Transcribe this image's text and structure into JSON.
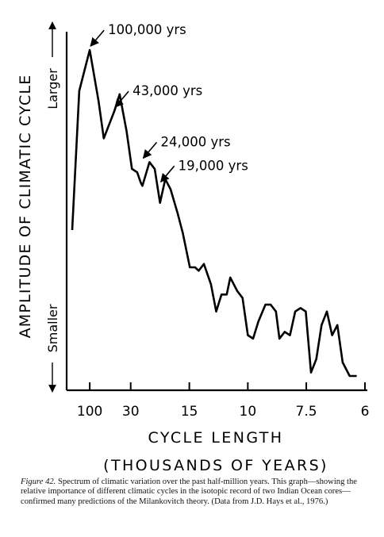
{
  "chart_data": {
    "type": "line",
    "title": "",
    "xlabel": "CYCLE LENGTH",
    "xlabel_units": "(THOUSANDS OF YEARS)",
    "ylabel": "AMPLITUDE OF CLIMATIC CYCLE",
    "y_top_label": "Larger",
    "y_bottom_label": "Smaller",
    "x_ticks": [
      {
        "label": "100",
        "frequency": 0.01
      },
      {
        "label": "30",
        "frequency": 0.0333
      },
      {
        "label": "15",
        "frequency": 0.0667
      },
      {
        "label": "10",
        "frequency": 0.1
      },
      {
        "label": "7.5",
        "frequency": 0.1333
      },
      {
        "label": "6",
        "frequency": 0.1667
      }
    ],
    "x_scale": "frequency (1 / cycle length)",
    "xlim": [
      0.0,
      0.1667
    ],
    "ylim": [
      0,
      100
    ],
    "y_axis_values_printed": false,
    "grid": false,
    "series": [
      {
        "values": [
          [
            0.0,
            43
          ],
          [
            0.004,
            84
          ],
          [
            0.01,
            96
          ],
          [
            0.015,
            81
          ],
          [
            0.018,
            70
          ],
          [
            0.024,
            78
          ],
          [
            0.027,
            83
          ],
          [
            0.031,
            72
          ],
          [
            0.034,
            61
          ],
          [
            0.037,
            60
          ],
          [
            0.039,
            57
          ],
          [
            0.04,
            56
          ],
          [
            0.044,
            63
          ],
          [
            0.047,
            61
          ],
          [
            0.05,
            51
          ],
          [
            0.053,
            58
          ],
          [
            0.056,
            55
          ],
          [
            0.06,
            48
          ],
          [
            0.063,
            42
          ],
          [
            0.067,
            32
          ],
          [
            0.07,
            32
          ],
          [
            0.072,
            31
          ],
          [
            0.075,
            33
          ],
          [
            0.079,
            27
          ],
          [
            0.082,
            19
          ],
          [
            0.085,
            24
          ],
          [
            0.088,
            24
          ],
          [
            0.09,
            29
          ],
          [
            0.094,
            25
          ],
          [
            0.097,
            23
          ],
          [
            0.1,
            12
          ],
          [
            0.103,
            11
          ],
          [
            0.106,
            16
          ],
          [
            0.11,
            21
          ],
          [
            0.113,
            21
          ],
          [
            0.116,
            19
          ],
          [
            0.118,
            11
          ],
          [
            0.121,
            13
          ],
          [
            0.124,
            12
          ],
          [
            0.127,
            19
          ],
          [
            0.13,
            20
          ],
          [
            0.133,
            19
          ],
          [
            0.136,
            1
          ],
          [
            0.139,
            5
          ],
          [
            0.142,
            15
          ],
          [
            0.145,
            19
          ],
          [
            0.148,
            12
          ],
          [
            0.151,
            15
          ],
          [
            0.154,
            4
          ],
          [
            0.158,
            0
          ],
          [
            0.162,
            0
          ]
        ]
      }
    ],
    "annotations": [
      {
        "text": "100,000 yrs",
        "x": 0.01,
        "y": 96
      },
      {
        "text": "43,000 yrs",
        "x": 0.024,
        "y": 78
      },
      {
        "text": "24,000 yrs",
        "x": 0.04,
        "y": 63
      },
      {
        "text": "19,000 yrs",
        "x": 0.05,
        "y": 56
      }
    ]
  },
  "caption": {
    "label": "Figure 42.",
    "text": " Spectrum of climatic variation over the past half-million years. This graph—showing the relative importance of different climatic cycles in the isotopic record of two Indian Ocean cores—confirmed many predictions of the Milankovitch theory. (Data from J.D. Hays et al., 1976.)"
  },
  "colors": {
    "ink": "#000000",
    "background": "#ffffff"
  }
}
